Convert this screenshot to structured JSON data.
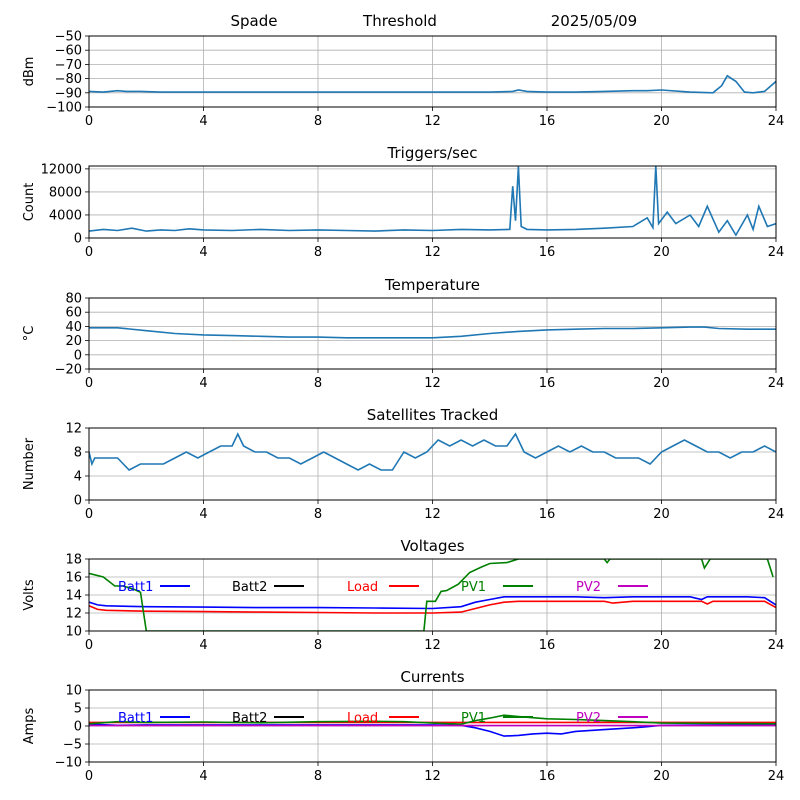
{
  "header": {
    "station": "Spade",
    "mode": "Threshold",
    "date": "2025/05/09"
  },
  "chart_data": [
    {
      "type": "line",
      "title": "",
      "ylabel": "dBm",
      "xlabel": "",
      "xlim": [
        0,
        24
      ],
      "ylim": [
        -100,
        -50
      ],
      "xticks": [
        0,
        4,
        8,
        12,
        16,
        20,
        24
      ],
      "yticks": [
        -100,
        -90,
        -80,
        -70,
        -60,
        -50
      ],
      "grid": true,
      "series": [
        {
          "color": "#1f77b4",
          "x": [
            0,
            0.5,
            1,
            1.3,
            1.8,
            2.5,
            4,
            6,
            8,
            10,
            12,
            14,
            14.8,
            15,
            15.3,
            16,
            17,
            18,
            19,
            19.5,
            20,
            21,
            21.8,
            22.1,
            22.3,
            22.6,
            22.9,
            23.2,
            23.6,
            24
          ],
          "y": [
            -89,
            -89.5,
            -88.5,
            -89,
            -89,
            -89.5,
            -89.5,
            -89.5,
            -89.5,
            -89.5,
            -89.5,
            -89.5,
            -89,
            -88,
            -89,
            -89.5,
            -89.5,
            -89,
            -88.5,
            -88.5,
            -88,
            -89.5,
            -90,
            -85,
            -78,
            -82,
            -89.5,
            -90,
            -89,
            -82
          ]
        }
      ]
    },
    {
      "type": "line",
      "title": "Triggers/sec",
      "ylabel": "Count",
      "xlabel": "",
      "xlim": [
        0,
        24
      ],
      "ylim": [
        0,
        12500
      ],
      "xticks": [
        0,
        4,
        8,
        12,
        16,
        20,
        24
      ],
      "yticks": [
        0,
        4000,
        8000,
        12000
      ],
      "grid": true,
      "series": [
        {
          "color": "#1f77b4",
          "x": [
            0,
            0.5,
            1,
            1.5,
            2,
            2.5,
            3,
            3.5,
            4,
            5,
            6,
            7,
            8,
            9,
            10,
            11,
            12,
            13,
            14,
            14.7,
            14.8,
            14.9,
            15,
            15.1,
            15.3,
            16,
            17,
            18,
            19,
            19.5,
            19.7,
            19.8,
            19.9,
            20.2,
            20.5,
            21,
            21.3,
            21.6,
            22,
            22.3,
            22.6,
            23,
            23.2,
            23.4,
            23.7,
            24
          ],
          "y": [
            1200,
            1500,
            1300,
            1700,
            1200,
            1400,
            1300,
            1600,
            1400,
            1300,
            1500,
            1300,
            1400,
            1300,
            1200,
            1400,
            1300,
            1500,
            1400,
            1500,
            9000,
            3000,
            12400,
            2000,
            1500,
            1400,
            1500,
            1700,
            2000,
            3500,
            1800,
            12500,
            2500,
            4500,
            2500,
            4000,
            2000,
            5500,
            1000,
            3000,
            500,
            4000,
            1500,
            5500,
            2000,
            2500
          ]
        }
      ]
    },
    {
      "type": "line",
      "title": "Temperature",
      "ylabel": "°C",
      "xlabel": "",
      "xlim": [
        0,
        24
      ],
      "ylim": [
        -20,
        80
      ],
      "xticks": [
        0,
        4,
        8,
        12,
        16,
        20,
        24
      ],
      "yticks": [
        -20,
        0,
        20,
        40,
        60,
        80
      ],
      "grid": true,
      "series": [
        {
          "color": "#1f77b4",
          "x": [
            0,
            1,
            2,
            3,
            4,
            5,
            6,
            7,
            8,
            9,
            10,
            11,
            12,
            13,
            14,
            15,
            16,
            17,
            18,
            19,
            20,
            21,
            21.5,
            22,
            23,
            24
          ],
          "y": [
            38,
            38,
            34,
            30,
            28,
            27,
            26,
            25,
            25,
            24,
            24,
            24,
            24,
            26,
            30,
            33,
            35,
            36,
            37,
            37,
            38,
            39,
            39,
            37,
            36,
            36
          ]
        }
      ]
    },
    {
      "type": "line",
      "title": "Satellites Tracked",
      "ylabel": "Number",
      "xlabel": "",
      "xlim": [
        0,
        24
      ],
      "ylim": [
        0,
        12
      ],
      "xticks": [
        0,
        4,
        8,
        12,
        16,
        20,
        24
      ],
      "yticks": [
        0,
        4,
        8,
        12
      ],
      "grid": true,
      "series": [
        {
          "color": "#1f77b4",
          "x": [
            0,
            0.1,
            0.2,
            1,
            1.2,
            1.4,
            1.8,
            2.2,
            2.6,
            3,
            3.4,
            3.8,
            4.2,
            4.6,
            5,
            5.2,
            5.4,
            5.8,
            6.2,
            6.6,
            7,
            7.4,
            7.8,
            8.2,
            8.6,
            9,
            9.4,
            9.8,
            10.2,
            10.6,
            11,
            11.4,
            11.8,
            12.2,
            12.6,
            13,
            13.4,
            13.8,
            14.2,
            14.6,
            14.9,
            15.2,
            15.6,
            16,
            16.4,
            16.8,
            17.2,
            17.6,
            18,
            18.4,
            18.8,
            19.2,
            19.6,
            20,
            20.4,
            20.8,
            21.2,
            21.6,
            22,
            22.4,
            22.8,
            23.2,
            23.6,
            24
          ],
          "y": [
            8,
            6,
            7,
            7,
            6,
            5,
            6,
            6,
            6,
            7,
            8,
            7,
            8,
            9,
            9,
            11,
            9,
            8,
            8,
            7,
            7,
            6,
            7,
            8,
            7,
            6,
            5,
            6,
            5,
            5,
            8,
            7,
            8,
            10,
            9,
            10,
            9,
            10,
            9,
            9,
            11,
            8,
            7,
            8,
            9,
            8,
            9,
            8,
            8,
            7,
            7,
            7,
            6,
            8,
            9,
            10,
            9,
            8,
            8,
            7,
            8,
            8,
            9,
            8
          ]
        }
      ]
    },
    {
      "type": "line",
      "title": "Voltages",
      "ylabel": "Volts",
      "xlabel": "",
      "xlim": [
        0,
        24
      ],
      "ylim": [
        10,
        18
      ],
      "xticks": [
        0,
        4,
        8,
        12,
        16,
        20,
        24
      ],
      "yticks": [
        10,
        12,
        14,
        16,
        18
      ],
      "grid": true,
      "legend": "top, single row",
      "series": [
        {
          "name": "Batt1",
          "color": "#0000ff",
          "x": [
            0,
            0.3,
            0.6,
            2,
            4,
            6,
            8,
            10,
            12,
            13,
            13.5,
            14,
            14.5,
            15,
            16,
            17,
            18,
            19,
            20,
            21,
            21.4,
            21.6,
            21.8,
            23,
            23.6,
            24
          ],
          "y": [
            13.2,
            12.9,
            12.8,
            12.7,
            12.65,
            12.6,
            12.6,
            12.55,
            12.5,
            12.7,
            13.2,
            13.5,
            13.8,
            13.8,
            13.8,
            13.8,
            13.7,
            13.8,
            13.8,
            13.8,
            13.5,
            13.8,
            13.8,
            13.8,
            13.7,
            12.9
          ]
        },
        {
          "name": "Batt2",
          "color": "#000000",
          "x": [],
          "y": []
        },
        {
          "name": "Load",
          "color": "#ff0000",
          "x": [
            0,
            0.3,
            0.6,
            2,
            4,
            6,
            8,
            10,
            12,
            13,
            13.5,
            14,
            14.5,
            15,
            16,
            17,
            18,
            18.3,
            19,
            20,
            21,
            21.4,
            21.6,
            21.8,
            23,
            23.6,
            24
          ],
          "y": [
            12.8,
            12.4,
            12.3,
            12.2,
            12.15,
            12.1,
            12.05,
            12.0,
            12.0,
            12.1,
            12.5,
            12.9,
            13.2,
            13.3,
            13.3,
            13.3,
            13.3,
            13.1,
            13.3,
            13.3,
            13.3,
            13.3,
            13.0,
            13.3,
            13.3,
            13.3,
            12.6
          ]
        },
        {
          "name": "PV1",
          "color": "#008000",
          "x": [
            0,
            0.5,
            0.9,
            1.2,
            1.4,
            1.6,
            1.8,
            2.0,
            11.7,
            11.8,
            12.1,
            12.3,
            12.5,
            12.9,
            13.3,
            13.7,
            14,
            14.6,
            15,
            18,
            18.1,
            18.2,
            21.4,
            21.5,
            21.7,
            23.7,
            23.9
          ],
          "y": [
            16.4,
            16.0,
            15.0,
            15.0,
            14.8,
            14.6,
            14.3,
            10.0,
            10.0,
            13.3,
            13.3,
            14.4,
            14.5,
            15.2,
            16.5,
            17.1,
            17.5,
            17.6,
            18.0,
            18.0,
            17.6,
            18.0,
            18.0,
            17.0,
            18.0,
            18.0,
            16.0
          ]
        },
        {
          "name": "PV2",
          "color": "#bf00bf",
          "x": [],
          "y": []
        }
      ]
    },
    {
      "type": "line",
      "title": "Currents",
      "ylabel": "Amps",
      "xlabel": "",
      "xlim": [
        0,
        24
      ],
      "ylim": [
        -10,
        10
      ],
      "xticks": [
        0,
        4,
        8,
        12,
        16,
        20,
        24
      ],
      "yticks": [
        -10,
        -5,
        0,
        5,
        10
      ],
      "grid": true,
      "legend": "top, single row",
      "series": [
        {
          "name": "Batt1",
          "color": "#0000ff",
          "x": [
            0,
            1,
            2,
            4,
            6,
            8,
            10,
            12,
            13,
            13.5,
            14,
            14.5,
            15,
            15.5,
            16,
            16.5,
            17,
            18,
            19,
            19.5,
            20,
            22,
            24
          ],
          "y": [
            0.5,
            0.2,
            0.3,
            0.3,
            0.3,
            0.3,
            0.3,
            0.3,
            0.2,
            -0.5,
            -1.5,
            -2.8,
            -2.6,
            -2.2,
            -2.0,
            -2.2,
            -1.5,
            -1.0,
            -0.5,
            -0.2,
            0.2,
            0.3,
            0.3
          ]
        },
        {
          "name": "Batt2",
          "color": "#000000",
          "x": [],
          "y": []
        },
        {
          "name": "Load",
          "color": "#ff0000",
          "x": [
            0,
            4,
            8,
            12,
            16,
            20,
            24
          ],
          "y": [
            1.0,
            1.0,
            1.0,
            1.0,
            1.0,
            1.0,
            1.0
          ]
        },
        {
          "name": "PV1",
          "color": "#008000",
          "x": [
            0,
            1,
            2,
            4,
            6,
            8,
            10,
            11,
            12,
            13,
            13.5,
            14,
            14.5,
            15,
            16,
            17,
            18,
            19,
            20,
            22,
            24
          ],
          "y": [
            0.6,
            1.2,
            1.0,
            1.1,
            0.9,
            1.2,
            1.3,
            1.2,
            0.8,
            0.5,
            1.5,
            2.2,
            3.0,
            2.6,
            2.0,
            1.8,
            1.5,
            1.2,
            0.8,
            0.7,
            0.6
          ]
        },
        {
          "name": "PV2",
          "color": "#bf00bf",
          "x": [
            0,
            4,
            8,
            12,
            16,
            20,
            24
          ],
          "y": [
            0.1,
            0.1,
            0.1,
            0.1,
            0.1,
            0.1,
            0.1
          ]
        }
      ]
    }
  ]
}
